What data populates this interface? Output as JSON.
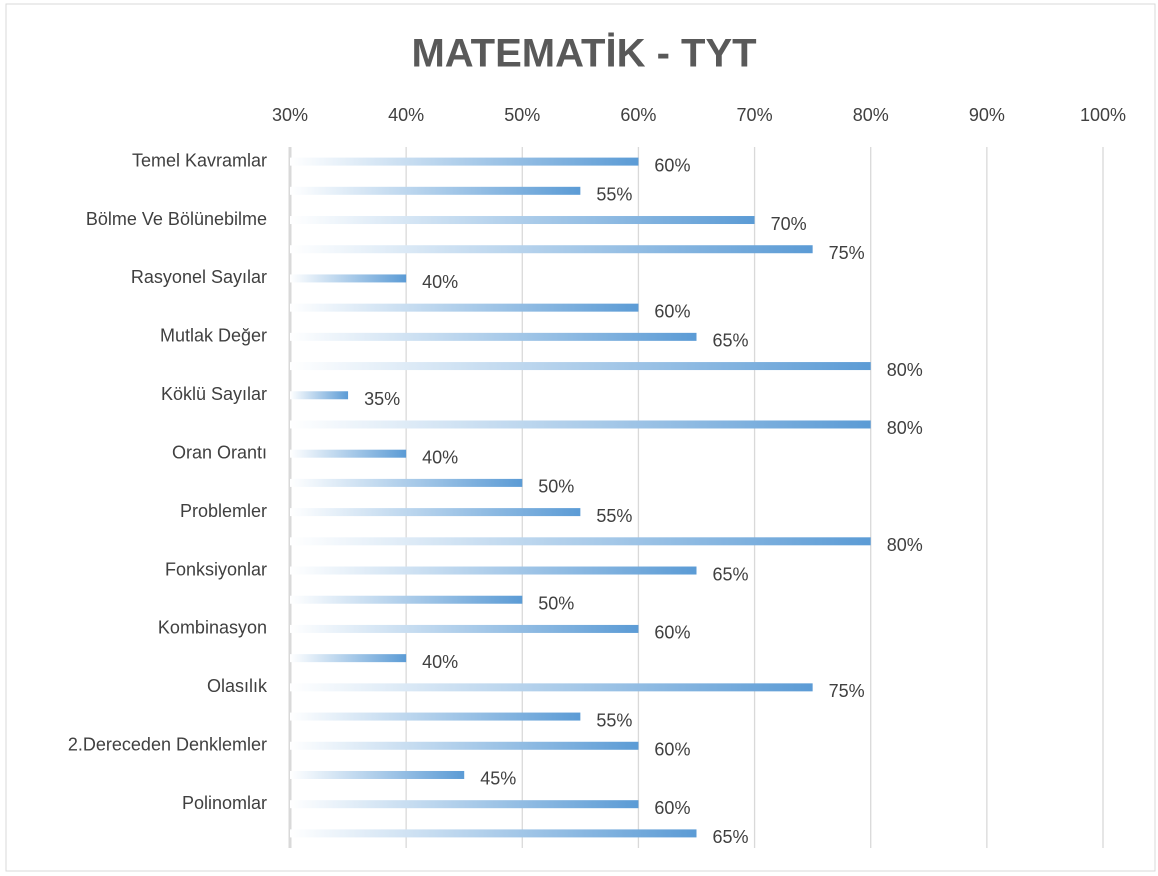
{
  "chart_data": {
    "type": "bar",
    "orientation": "horizontal",
    "title": "MATEMATİK - TYT",
    "categories": [
      "Temel Kavramlar",
      null,
      "Bölme Ve Bölünebilme",
      null,
      "Rasyonel Sayılar",
      null,
      "Mutlak Değer",
      null,
      "Köklü Sayılar",
      null,
      "Oran Orantı",
      null,
      "Problemler",
      null,
      "Fonksiyonlar",
      null,
      "Kombinasyon",
      null,
      "Olasılık",
      null,
      "2.Dereceden Denklemler",
      null,
      "Polinomlar",
      null
    ],
    "values": [
      60,
      55,
      70,
      75,
      40,
      60,
      65,
      80,
      35,
      80,
      40,
      50,
      55,
      80,
      65,
      50,
      60,
      40,
      75,
      55,
      60,
      45,
      60,
      65
    ],
    "value_labels": [
      "60%",
      "55%",
      "70%",
      "75%",
      "40%",
      "60%",
      "65%",
      "80%",
      "35%",
      "80%",
      "40%",
      "50%",
      "55%",
      "80%",
      "65%",
      "50%",
      "60%",
      "40%",
      "75%",
      "55%",
      "60%",
      "45%",
      "60%",
      "65%"
    ],
    "color": "#5b9bd5",
    "xlim": [
      30,
      100
    ],
    "xticks": [
      {
        "value": 30,
        "label": "30%"
      },
      {
        "value": 40,
        "label": "40%"
      },
      {
        "value": 50,
        "label": "50%"
      },
      {
        "value": 60,
        "label": "60%"
      },
      {
        "value": 70,
        "label": "70%"
      },
      {
        "value": 80,
        "label": "80%"
      },
      {
        "value": 90,
        "label": "90%"
      },
      {
        "value": 100,
        "label": "100%"
      }
    ],
    "grid": true
  }
}
